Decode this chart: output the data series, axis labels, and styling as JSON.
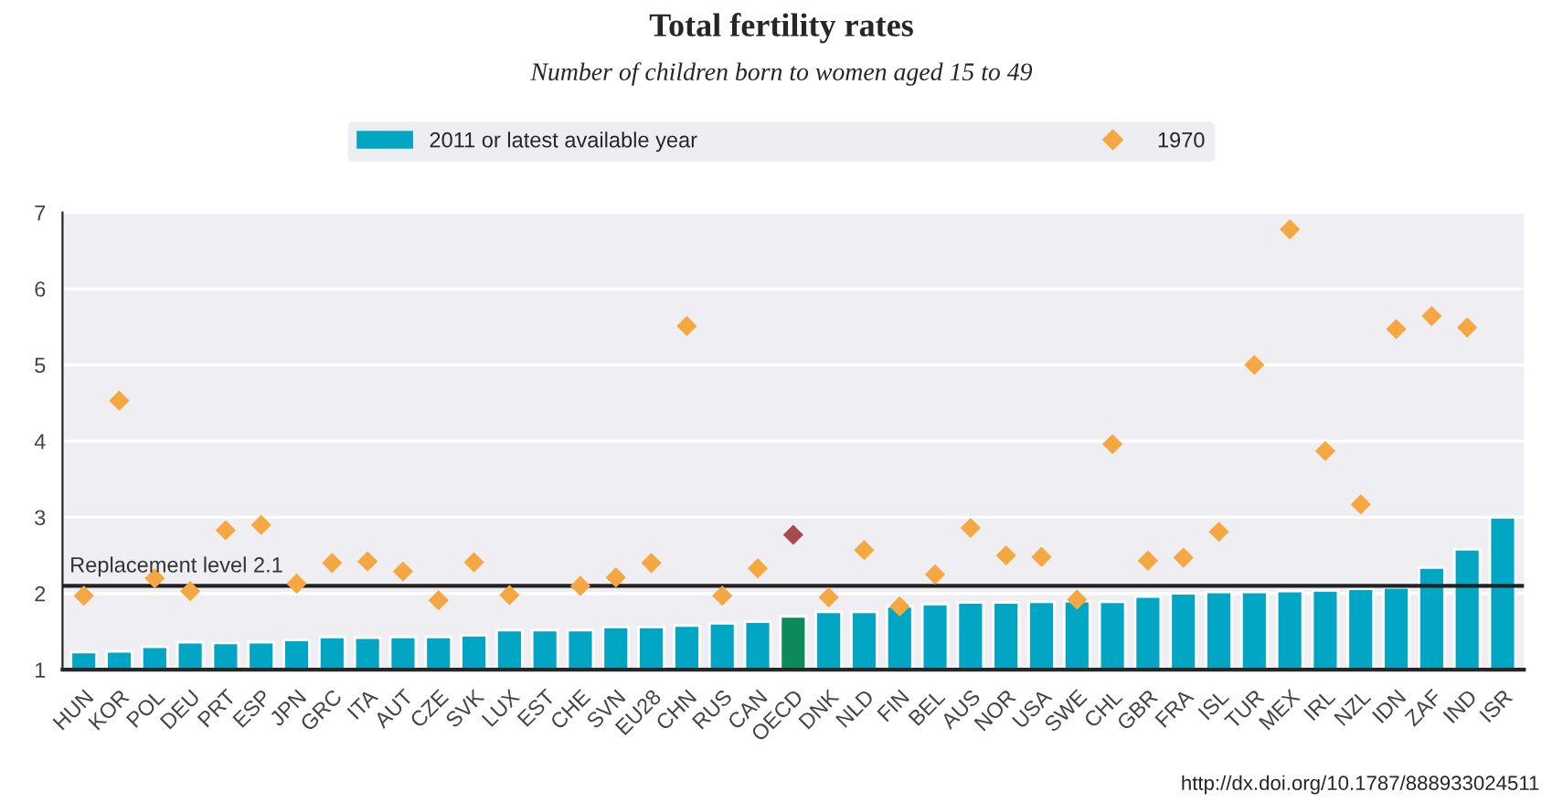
{
  "chart_data": {
    "type": "bar",
    "title": "Total fertility rates",
    "subtitle": "Number of children born to women aged 15 to 49",
    "categories": [
      "HUN",
      "KOR",
      "POL",
      "DEU",
      "PRT",
      "ESP",
      "JPN",
      "GRC",
      "ITA",
      "AUT",
      "CZE",
      "SVK",
      "LUX",
      "EST",
      "CHE",
      "SVN",
      "EU28",
      "CHN",
      "RUS",
      "CAN",
      "OECD",
      "DNK",
      "NLD",
      "FIN",
      "BEL",
      "AUS",
      "NOR",
      "USA",
      "SWE",
      "CHL",
      "GBR",
      "FRA",
      "ISL",
      "TUR",
      "MEX",
      "IRL",
      "NZL",
      "IDN",
      "ZAF",
      "IND",
      "ISR"
    ],
    "series": [
      {
        "name": "2011 or latest available year",
        "color": "#00a6c4",
        "colors": [
          "#00a6c4",
          "#00a6c4",
          "#00a6c4",
          "#00a6c4",
          "#00a6c4",
          "#00a6c4",
          "#00a6c4",
          "#00a6c4",
          "#00a6c4",
          "#00a6c4",
          "#00a6c4",
          "#00a6c4",
          "#00a6c4",
          "#00a6c4",
          "#00a6c4",
          "#00a6c4",
          "#00a6c4",
          "#00a6c4",
          "#00a6c4",
          "#00a6c4",
          "#0e8a5a",
          "#00a6c4",
          "#00a6c4",
          "#00a6c4",
          "#00a6c4",
          "#00a6c4",
          "#00a6c4",
          "#00a6c4",
          "#00a6c4",
          "#00a6c4",
          "#00a6c4",
          "#00a6c4",
          "#00a6c4",
          "#00a6c4",
          "#00a6c4",
          "#00a6c4",
          "#00a6c4",
          "#00a6c4",
          "#00a6c4",
          "#00a6c4",
          "#00a6c4"
        ],
        "values": [
          1.23,
          1.24,
          1.3,
          1.36,
          1.35,
          1.36,
          1.39,
          1.43,
          1.42,
          1.43,
          1.43,
          1.45,
          1.52,
          1.52,
          1.52,
          1.56,
          1.56,
          1.58,
          1.61,
          1.63,
          1.7,
          1.76,
          1.76,
          1.83,
          1.86,
          1.88,
          1.88,
          1.89,
          1.9,
          1.89,
          1.96,
          2.0,
          2.02,
          2.02,
          2.03,
          2.04,
          2.06,
          2.08,
          2.34,
          2.58,
          3.0
        ]
      },
      {
        "name": "1970",
        "type": "scatter",
        "marker": "diamond",
        "color": "#f5a742",
        "colors": [
          "#f5a742",
          "#f5a742",
          "#f5a742",
          "#f5a742",
          "#f5a742",
          "#f5a742",
          "#f5a742",
          "#f5a742",
          "#f5a742",
          "#f5a742",
          "#f5a742",
          "#f5a742",
          "#f5a742",
          "#f5a742",
          "#f5a742",
          "#f5a742",
          "#f5a742",
          "#f5a742",
          "#f5a742",
          "#f5a742",
          "#a94a4a",
          "#f5a742",
          "#f5a742",
          "#f5a742",
          "#f5a742",
          "#f5a742",
          "#f5a742",
          "#f5a742",
          "#f5a742",
          "#f5a742",
          "#f5a742",
          "#f5a742",
          "#f5a742",
          "#f5a742",
          "#f5a742",
          "#f5a742",
          "#f5a742",
          "#f5a742",
          "#f5a742",
          "#f5a742",
          "#f5a742"
        ],
        "values": [
          1.97,
          4.53,
          2.2,
          2.03,
          2.83,
          2.9,
          2.13,
          2.4,
          2.42,
          2.29,
          1.91,
          2.41,
          1.98,
          null,
          2.1,
          2.21,
          2.4,
          5.51,
          1.97,
          2.33,
          2.77,
          1.95,
          2.57,
          1.83,
          2.25,
          2.86,
          2.5,
          2.48,
          1.92,
          3.96,
          2.43,
          2.47,
          2.81,
          5.0,
          6.78,
          3.87,
          3.17,
          5.47,
          5.64,
          5.49,
          null
        ]
      }
    ],
    "ylim": [
      1,
      7
    ],
    "yticks": [
      1,
      2,
      3,
      4,
      5,
      6,
      7
    ],
    "grid": "y",
    "legend": "top",
    "ref_lines": [
      {
        "axis": "y",
        "value": 2.1,
        "label": "Replacement level 2.1",
        "color": "#222222"
      }
    ],
    "annotations": [
      "http://dx.doi.org/10.1787/888933024511"
    ]
  }
}
